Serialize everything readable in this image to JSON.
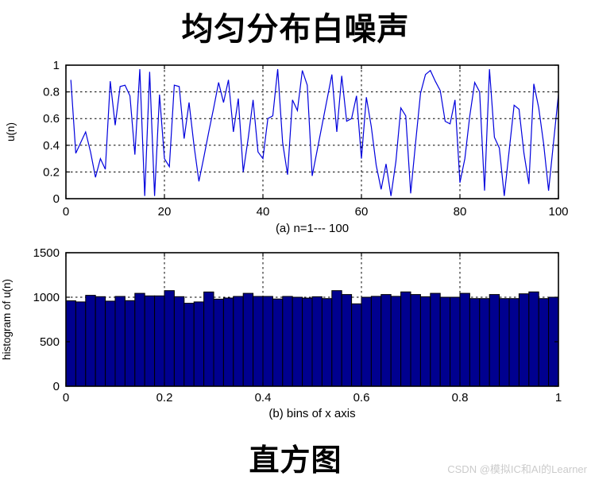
{
  "page": {
    "title_top": "均匀分布白噪声",
    "title_bottom": "直方图",
    "watermark": "CSDN @模拟IC和AI的Learner",
    "background": "#ffffff",
    "watermark_color": "#cbcbcb"
  },
  "chart_data": [
    {
      "id": "a",
      "type": "line",
      "xlabel": "(a)  n=1--- 100",
      "ylabel": "u(n)",
      "xlim": [
        0,
        100
      ],
      "ylim": [
        0,
        1
      ],
      "xticks": [
        0,
        20,
        40,
        60,
        80,
        100
      ],
      "yticks": [
        0,
        0.2,
        0.4,
        0.6,
        0.8,
        1
      ],
      "grid": true,
      "legend": "none",
      "line_color": "#0000dd",
      "x_start": 1,
      "x_step": 1,
      "y": [
        0.89,
        0.34,
        0.42,
        0.5,
        0.35,
        0.16,
        0.3,
        0.22,
        0.88,
        0.55,
        0.84,
        0.85,
        0.77,
        0.33,
        0.97,
        0.02,
        0.95,
        0.02,
        0.78,
        0.3,
        0.24,
        0.85,
        0.84,
        0.45,
        0.72,
        0.4,
        0.13,
        0.31,
        0.5,
        0.68,
        0.87,
        0.72,
        0.89,
        0.5,
        0.75,
        0.2,
        0.45,
        0.74,
        0.35,
        0.3,
        0.6,
        0.62,
        0.97,
        0.42,
        0.18,
        0.74,
        0.66,
        0.96,
        0.85,
        0.17,
        0.36,
        0.55,
        0.74,
        0.93,
        0.5,
        0.92,
        0.58,
        0.6,
        0.77,
        0.3,
        0.76,
        0.54,
        0.25,
        0.07,
        0.26,
        0.02,
        0.28,
        0.68,
        0.62,
        0.04,
        0.42,
        0.79,
        0.93,
        0.96,
        0.88,
        0.81,
        0.58,
        0.56,
        0.74,
        0.12,
        0.3,
        0.62,
        0.87,
        0.8,
        0.06,
        0.97,
        0.46,
        0.38,
        0.02,
        0.36,
        0.7,
        0.67,
        0.34,
        0.11,
        0.86,
        0.68,
        0.41,
        0.06,
        0.42,
        0.78
      ]
    },
    {
      "id": "b",
      "type": "bar",
      "xlabel": "(b) bins of  x axis",
      "ylabel": "histogram of u(n)",
      "xlim": [
        0,
        1
      ],
      "ylim": [
        0,
        1500
      ],
      "xticks": [
        0,
        0.2,
        0.4,
        0.6,
        0.8,
        1
      ],
      "yticks": [
        0,
        500,
        1000,
        1500
      ],
      "grid": true,
      "legend": "none",
      "bar_color": "#00008f",
      "bar_edge_color": "#000000",
      "bin_start": 0,
      "bin_width": 0.02,
      "values": [
        960,
        947,
        1021,
        1006,
        956,
        1009,
        962,
        1044,
        1015,
        1015,
        1074,
        1006,
        932,
        947,
        1059,
        979,
        991,
        1009,
        1044,
        1009,
        1009,
        980,
        1009,
        1000,
        990,
        1005,
        985,
        1074,
        1030,
        926,
        1000,
        1010,
        1030,
        1010,
        1060,
        1030,
        1005,
        1044,
        1000,
        1000,
        1044,
        985,
        985,
        1030,
        985,
        985,
        1038,
        1060,
        985,
        1000
      ]
    }
  ]
}
